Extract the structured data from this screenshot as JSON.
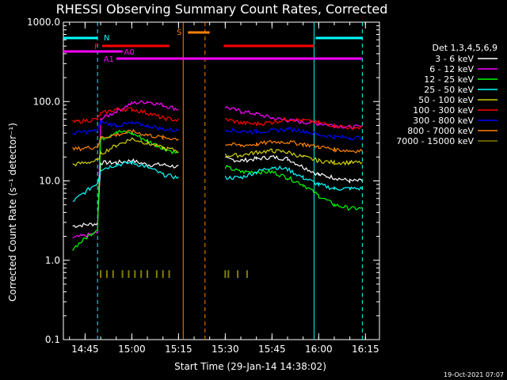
{
  "chart_data": {
    "type": "line",
    "title": "RHESSI Observing Summary Count Rates, Corrected",
    "xlabel": "Start Time (29-Jan-14 14:38:02)",
    "ylabel": "Corrected Count Rate (s⁻¹ detector⁻¹)",
    "y_scale": "log",
    "ylim": [
      0.1,
      1000
    ],
    "xlim": [
      "14:38:02",
      "16:19:30"
    ],
    "x_ticks": [
      "14:45",
      "15:00",
      "15:15",
      "15:30",
      "15:45",
      "16:00",
      "16:15"
    ],
    "y_ticks": [
      "0.1",
      "1.0",
      "10.0",
      "100.0",
      "1000.0"
    ],
    "legend_title": "Det 1,3,4,5,6,9",
    "legend_position": "right",
    "timestamp": "19-Oct-2021 07:07",
    "x": [
      "14:41",
      "14:49",
      "14:50",
      "14:55",
      "15:00",
      "15:05",
      "15:10",
      "15:15",
      "15:25",
      "15:30",
      "15:35",
      "15:40",
      "15:45",
      "15:50",
      "15:55",
      "16:00",
      "16:05",
      "16:10",
      "16:14"
    ],
    "series": [
      {
        "name": "3 - 6 keV",
        "color": "#ffffff",
        "values": [
          2.7,
          2.9,
          17,
          17,
          18,
          16,
          16,
          15,
          null,
          19,
          18,
          19,
          20,
          19,
          15,
          12,
          11,
          10,
          10
        ]
      },
      {
        "name": "6 - 12 keV",
        "color": "#ff00ff",
        "values": [
          1.9,
          2.2,
          60,
          75,
          95,
          100,
          90,
          80,
          null,
          85,
          75,
          70,
          62,
          58,
          55,
          53,
          50,
          48,
          48
        ]
      },
      {
        "name": "12 - 25 keV",
        "color": "#00ff00",
        "values": [
          1.4,
          2.5,
          33,
          42,
          40,
          32,
          26,
          22,
          null,
          15,
          13,
          13,
          13,
          11,
          9,
          6.5,
          5,
          4.5,
          4.5
        ]
      },
      {
        "name": "25 - 50 keV",
        "color": "#00ffff",
        "values": [
          5.5,
          9.5,
          14,
          16,
          17,
          15,
          12,
          11,
          null,
          11,
          11,
          13,
          15,
          14,
          11,
          9,
          8,
          8,
          8
        ]
      },
      {
        "name": "50 - 100 keV",
        "color": "#d0d000",
        "values": [
          16,
          18,
          22,
          28,
          34,
          30,
          26,
          24,
          null,
          21,
          21,
          23,
          24,
          23,
          20,
          18,
          17,
          17,
          17
        ]
      },
      {
        "name": "100 - 300 keV",
        "color": "#ff0000",
        "values": [
          55,
          60,
          70,
          80,
          80,
          72,
          62,
          58,
          null,
          60,
          54,
          52,
          55,
          60,
          58,
          54,
          50,
          47,
          47
        ]
      },
      {
        "name": "300 - 800 keV",
        "color": "#0000ff",
        "values": [
          40,
          43,
          55,
          50,
          53,
          50,
          45,
          43,
          null,
          45,
          42,
          42,
          43,
          45,
          43,
          38,
          36,
          35,
          35
        ]
      },
      {
        "name": "800 - 7000 keV",
        "color": "#ff8000",
        "values": [
          25,
          27,
          35,
          38,
          42,
          38,
          35,
          34,
          null,
          29,
          28,
          29,
          31,
          31,
          29,
          27,
          25,
          24,
          24
        ]
      },
      {
        "name": "7000 - 15000 keV",
        "color": "#808000",
        "values": [
          null,
          null,
          0.75,
          0.75,
          0.75,
          0.75,
          0.75,
          0.75,
          null,
          0.75,
          0.75,
          null,
          null,
          null,
          null,
          null,
          null,
          null,
          null
        ]
      }
    ],
    "flags": [
      {
        "label": "N",
        "color": "#00ffff",
        "segments": [
          [
            "14:38:02",
            "14:49:00"
          ],
          [
            "15:59:00",
            "16:14:00"
          ]
        ]
      },
      {
        "label": "S",
        "color": "#ff8000",
        "segments": [
          [
            "15:18:00",
            "15:25:00"
          ]
        ]
      },
      {
        "label": "F",
        "color": "#ff0000",
        "segments": [
          [
            "14:50:30",
            "15:12:00"
          ],
          [
            "15:29:30",
            "15:58:30"
          ]
        ]
      },
      {
        "label": "A0",
        "color": "#ff00ff",
        "segments": [
          [
            "14:38:02",
            "14:57:00"
          ]
        ]
      },
      {
        "label": "A1",
        "color": "#ff00ff",
        "segments": [
          [
            "14:55:00",
            "16:14:00"
          ]
        ]
      }
    ],
    "vertical_lines": [
      {
        "time": "14:49:00",
        "color": "#00ffff",
        "style": "dashed"
      },
      {
        "time": "15:16:30",
        "color": "#ff8000",
        "style": "solid"
      },
      {
        "time": "15:23:30",
        "color": "#ff8000",
        "style": "dashed"
      },
      {
        "time": "15:58:30",
        "color": "#00ffff",
        "style": "solid"
      },
      {
        "time": "16:14:00",
        "color": "#00ffff",
        "style": "dashed"
      }
    ]
  }
}
